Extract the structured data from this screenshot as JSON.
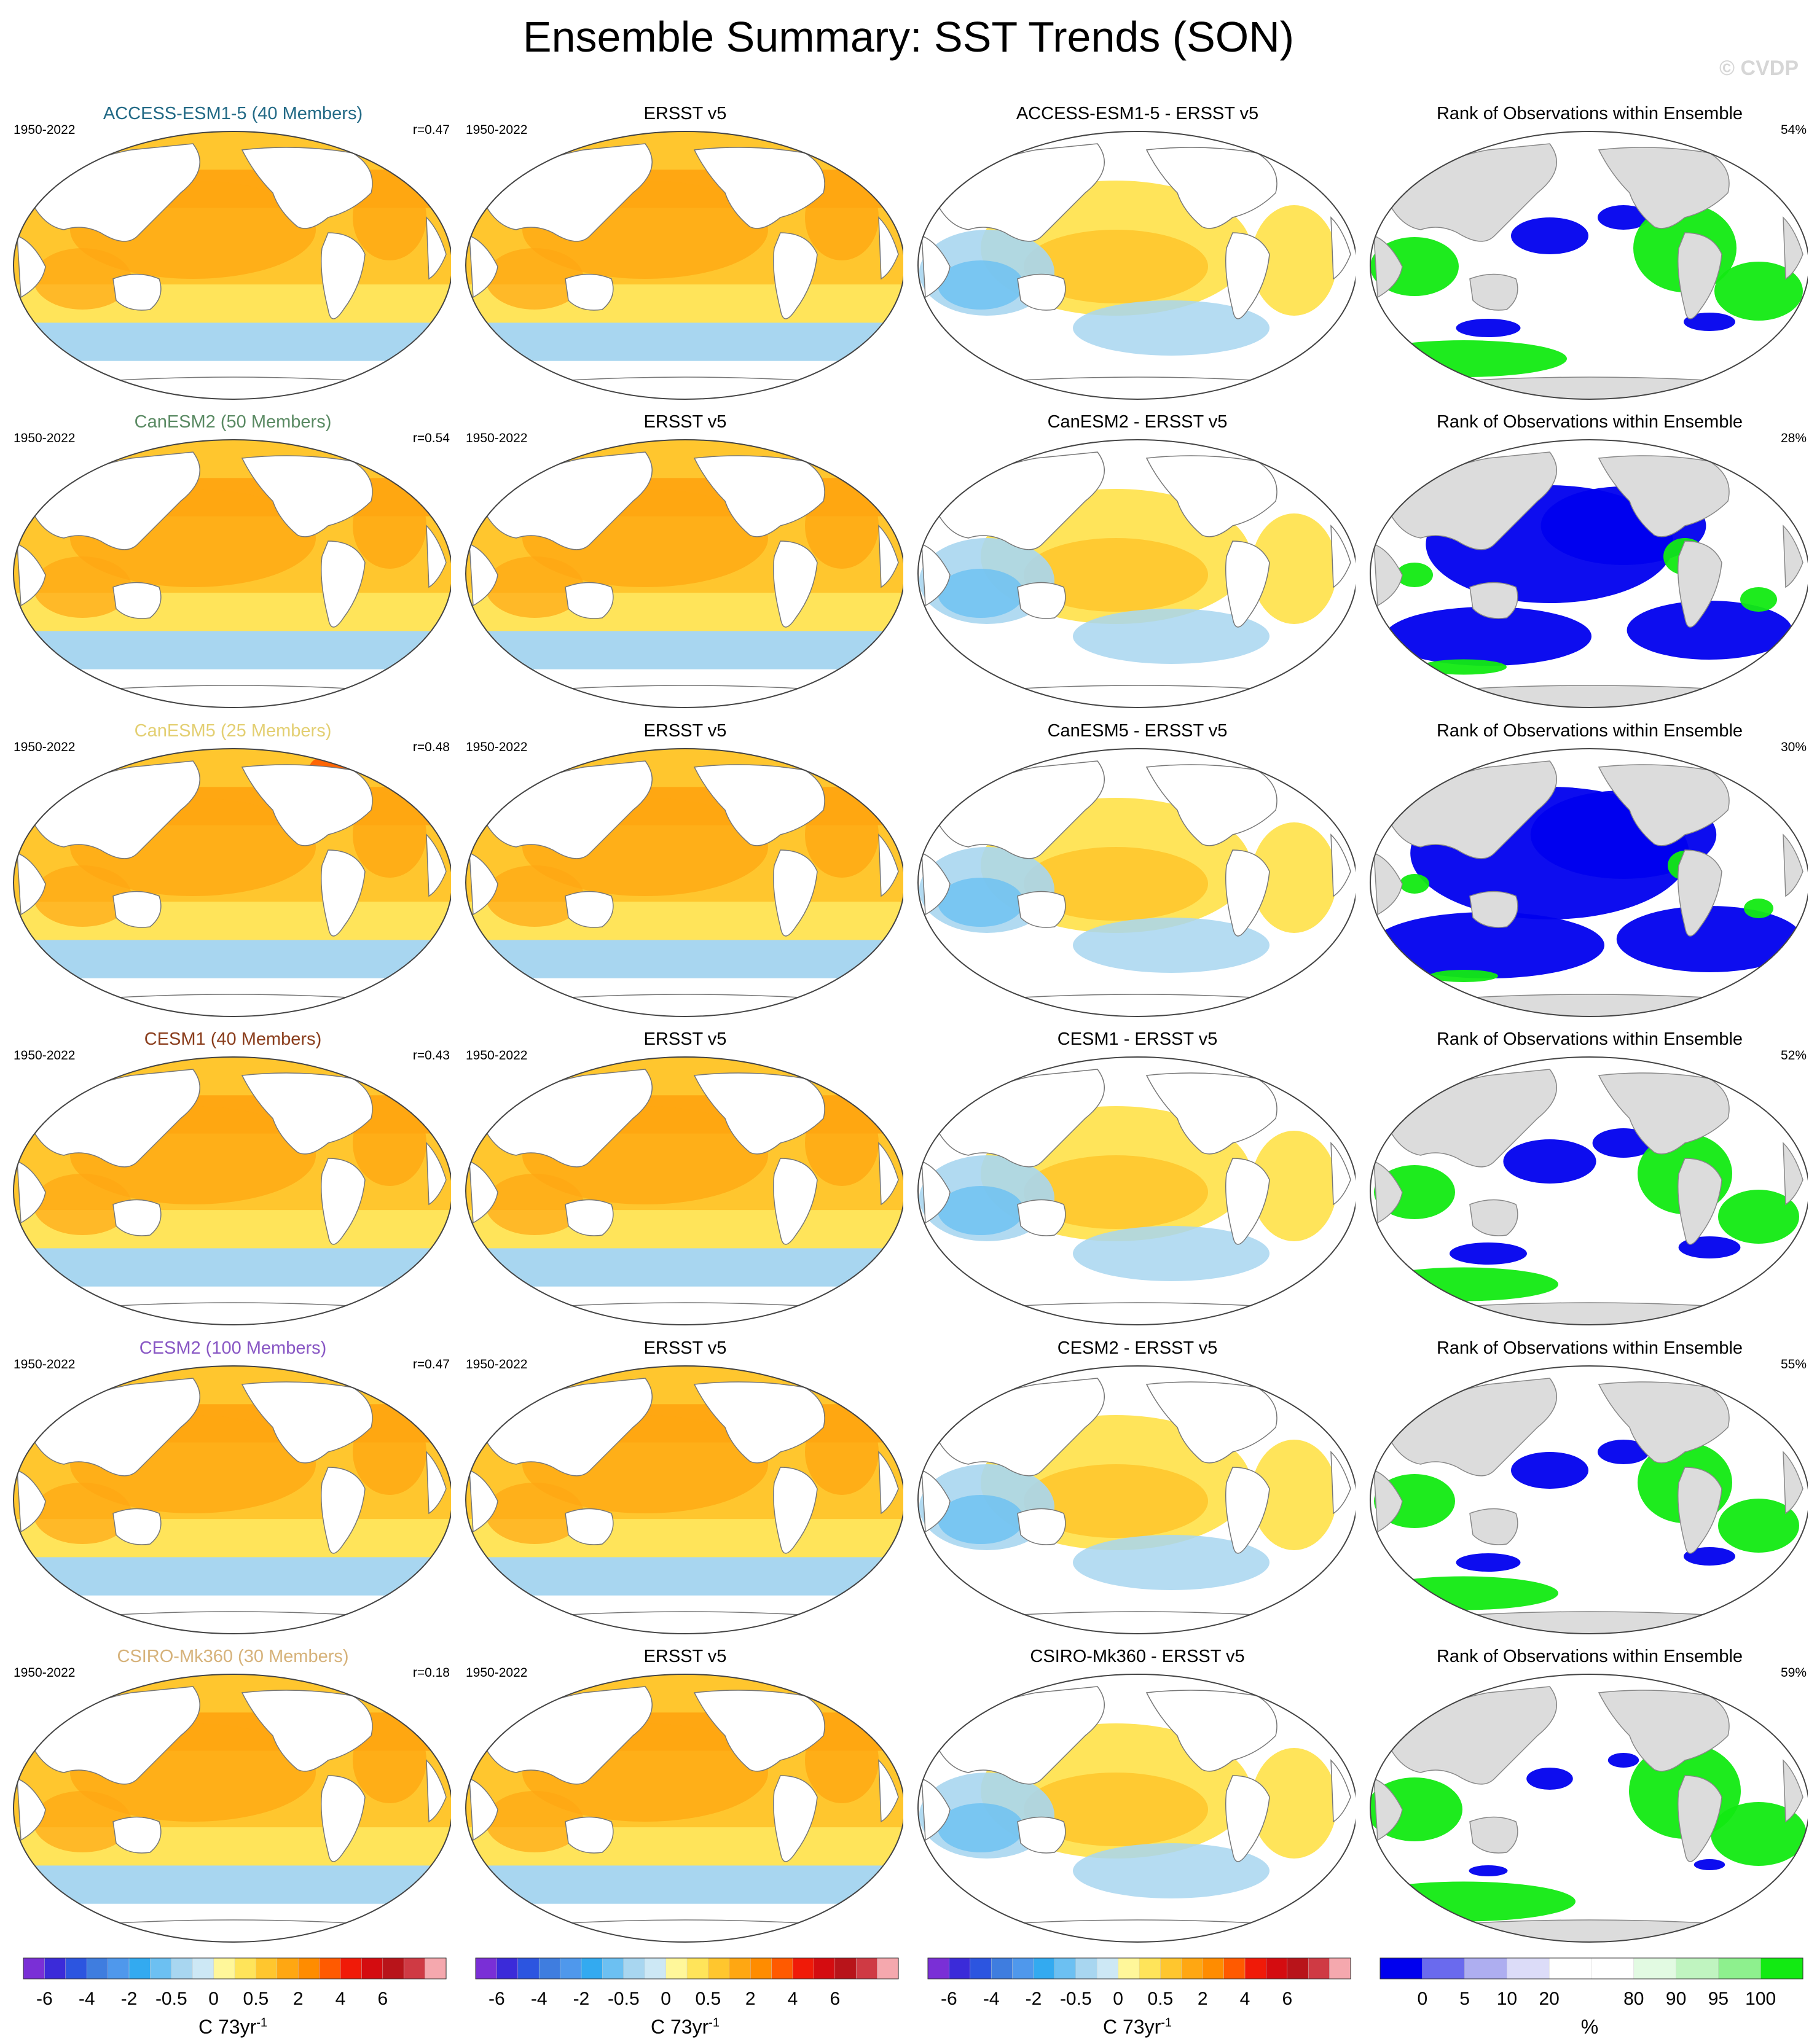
{
  "title": "Ensemble Summary: SST Trends (SON)",
  "watermark": "© CVDP",
  "rows": [
    {
      "model_title": "ACCESS-ESM1-5 (40 Members)",
      "model_color": "#236a86",
      "period": "1950-2022",
      "corr": "r=0.47",
      "obs_title": "ERSST v5",
      "obs_period": "1950-2022",
      "diff_title": "ACCESS-ESM1-5 - ERSST v5",
      "rank_title": "Rank of Observations within Ensemble",
      "rank_pct": "54%"
    },
    {
      "model_title": "CanESM2 (50 Members)",
      "model_color": "#5a8a63",
      "period": "1950-2022",
      "corr": "r=0.54",
      "obs_title": "ERSST v5",
      "obs_period": "1950-2022",
      "diff_title": "CanESM2 - ERSST v5",
      "rank_title": "Rank of Observations within Ensemble",
      "rank_pct": "28%"
    },
    {
      "model_title": "CanESM5 (25 Members)",
      "model_color": "#e3cf72",
      "period": "1950-2022",
      "corr": "r=0.48",
      "obs_title": "ERSST v5",
      "obs_period": "1950-2022",
      "diff_title": "CanESM5 - ERSST v5",
      "rank_title": "Rank of Observations within Ensemble",
      "rank_pct": "30%"
    },
    {
      "model_title": "CESM1 (40 Members)",
      "model_color": "#8a3d1c",
      "period": "1950-2022",
      "corr": "r=0.43",
      "obs_title": "ERSST v5",
      "obs_period": "1950-2022",
      "diff_title": "CESM1 - ERSST v5",
      "rank_title": "Rank of Observations within Ensemble",
      "rank_pct": "52%"
    },
    {
      "model_title": "CESM2 (100 Members)",
      "model_color": "#8856c4",
      "period": "1950-2022",
      "corr": "r=0.47",
      "obs_title": "ERSST v5",
      "obs_period": "1950-2022",
      "diff_title": "CESM2 - ERSST v5",
      "rank_title": "Rank of Observations within Ensemble",
      "rank_pct": "55%"
    },
    {
      "model_title": "CSIRO-Mk360 (30 Members)",
      "model_color": "#d6b27a",
      "period": "1950-2022",
      "corr": "r=0.18",
      "obs_title": "ERSST v5",
      "obs_period": "1950-2022",
      "diff_title": "CSIRO-Mk360 - ERSST v5",
      "rank_title": "Rank of Observations within Ensemble",
      "rank_pct": "59%"
    }
  ],
  "trend_colorbar": {
    "colors": [
      "#7a2fd6",
      "#3b2bd9",
      "#2c55e0",
      "#3f7ddf",
      "#4f98ec",
      "#33aaf0",
      "#6cc0f2",
      "#a8d6f0",
      "#cde8f5",
      "#fff79a",
      "#ffe45a",
      "#ffc62e",
      "#ffa712",
      "#ff8c00",
      "#ff5a00",
      "#f01a08",
      "#d40c10",
      "#b8141a",
      "#cf3a44",
      "#f5a8ae"
    ],
    "labels": [
      "-6",
      "-4",
      "-2",
      "-0.5",
      "0",
      "0.5",
      "2",
      "4",
      "6"
    ],
    "unit": "C 73yr",
    "unit_sup": "-1"
  },
  "rank_colorbar": {
    "colors": [
      "#0000ee",
      "#6a6aee",
      "#aeaef0",
      "#dcdcf8",
      "#ffffff",
      "#ffffff",
      "#e2fae2",
      "#c0f4c0",
      "#8ef08e",
      "#12ea12"
    ],
    "labels": [
      "0",
      "5",
      "10",
      "20",
      "80",
      "90",
      "95",
      "100"
    ],
    "unit": "%"
  },
  "map_colors": {
    "ocean_light": "#ffe45a",
    "ocean_mid": "#ffc62e",
    "ocean_dark": "#ffa712",
    "warm_spot": "#ff5a00",
    "cool_light": "#a8d6f0",
    "cool_mid": "#6cc0f2",
    "rank_land": "#dcdcdc",
    "rank_low": "#0000ee",
    "rank_high": "#12ea12"
  }
}
